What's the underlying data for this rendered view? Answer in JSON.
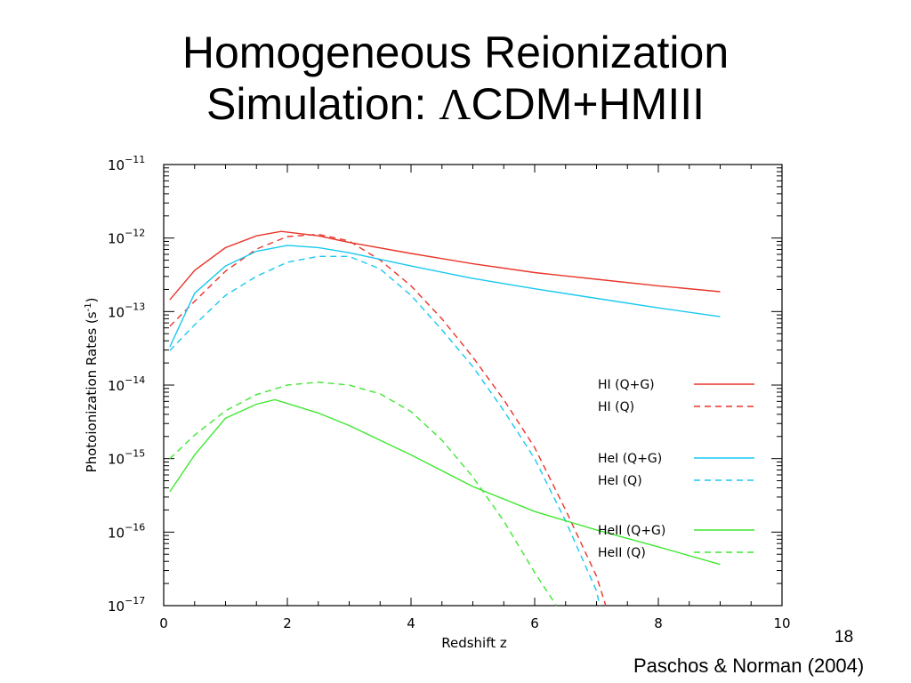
{
  "slide": {
    "title_line1": "Homogeneous Reionization",
    "title_line2_prefix": "Simulation: ",
    "title_lambda": "Λ",
    "title_line2_suffix": "CDM+HMIII",
    "slide_number": "18",
    "citation": "Paschos & Norman (2004)"
  },
  "chart_data": {
    "type": "line",
    "xlabel": "Redshift z",
    "ylabel": "Photoionization Rates (s",
    "ylabel_sup": "-1",
    "ylabel_close": ")",
    "xlim": [
      0,
      10
    ],
    "ylim_log10": [
      -17,
      -11
    ],
    "yscale": "log",
    "x_ticks": [
      0,
      2,
      4,
      6,
      8,
      10
    ],
    "y_ticks": [
      {
        "base": "10",
        "exp": "−11",
        "value": -11
      },
      {
        "base": "10",
        "exp": "−12",
        "value": -12
      },
      {
        "base": "10",
        "exp": "−13",
        "value": -13
      },
      {
        "base": "10",
        "exp": "−14",
        "value": -14
      },
      {
        "base": "10",
        "exp": "−15",
        "value": -15
      },
      {
        "base": "10",
        "exp": "−16",
        "value": -16
      },
      {
        "base": "10",
        "exp": "−17",
        "value": -17
      }
    ],
    "legend_position": "right",
    "series": [
      {
        "name": "HI (Q+G)",
        "color": "#e8352a",
        "dash": "solid",
        "x": [
          0.1,
          0.5,
          1.0,
          1.5,
          1.9,
          2.5,
          3.0,
          4.0,
          5.0,
          6.0,
          7.0,
          8.0,
          9.0
        ],
        "y": [
          -12.84,
          -12.44,
          -12.13,
          -11.97,
          -11.91,
          -11.97,
          -12.06,
          -12.21,
          -12.35,
          -12.47,
          -12.56,
          -12.65,
          -12.73
        ]
      },
      {
        "name": "HI (Q)",
        "color": "#e8352a",
        "dash": "dashed",
        "x": [
          0.1,
          0.5,
          1.0,
          1.5,
          2.0,
          2.5,
          3.0,
          3.5,
          4.0,
          4.5,
          5.0,
          5.5,
          6.0,
          6.5,
          7.0,
          7.15
        ],
        "y": [
          -13.2,
          -12.86,
          -12.45,
          -12.15,
          -11.98,
          -11.95,
          -12.04,
          -12.3,
          -12.65,
          -13.1,
          -13.62,
          -14.2,
          -14.85,
          -15.7,
          -16.6,
          -17.0
        ]
      },
      {
        "name": "HeI (Q+G)",
        "color": "#19c8f0",
        "dash": "solid",
        "x": [
          0.1,
          0.5,
          1.0,
          1.5,
          2.0,
          2.5,
          3.0,
          4.0,
          5.0,
          6.0,
          7.0,
          8.0,
          9.0
        ],
        "y": [
          -13.48,
          -12.75,
          -12.38,
          -12.18,
          -12.1,
          -12.13,
          -12.2,
          -12.38,
          -12.55,
          -12.69,
          -12.82,
          -12.95,
          -13.07
        ]
      },
      {
        "name": "HeI (Q)",
        "color": "#19c8f0",
        "dash": "dashed",
        "x": [
          0.1,
          0.5,
          1.0,
          1.5,
          2.0,
          2.5,
          3.0,
          3.5,
          4.0,
          4.5,
          5.0,
          5.5,
          6.0,
          6.5,
          7.0,
          7.05
        ],
        "y": [
          -13.53,
          -13.18,
          -12.78,
          -12.52,
          -12.33,
          -12.25,
          -12.25,
          -12.42,
          -12.78,
          -13.25,
          -13.75,
          -14.35,
          -15.0,
          -15.85,
          -16.8,
          -17.0
        ]
      },
      {
        "name": "HeII (Q+G)",
        "color": "#3fe830",
        "dash": "solid",
        "x": [
          0.1,
          0.5,
          1.0,
          1.5,
          1.8,
          2.5,
          3.0,
          4.0,
          5.0,
          6.0,
          7.0,
          8.0,
          9.0
        ],
        "y": [
          -15.45,
          -14.95,
          -14.45,
          -14.26,
          -14.2,
          -14.38,
          -14.55,
          -14.95,
          -15.38,
          -15.72,
          -15.97,
          -16.2,
          -16.44
        ]
      },
      {
        "name": "HeII (Q)",
        "color": "#3fe830",
        "dash": "dashed",
        "x": [
          0.1,
          0.5,
          1.0,
          1.5,
          2.0,
          2.5,
          3.0,
          3.5,
          4.0,
          4.5,
          5.0,
          5.5,
          6.0,
          6.35
        ],
        "y": [
          -15.0,
          -14.68,
          -14.35,
          -14.13,
          -14.0,
          -13.96,
          -14.0,
          -14.12,
          -14.36,
          -14.75,
          -15.25,
          -15.85,
          -16.55,
          -17.0
        ]
      }
    ]
  }
}
